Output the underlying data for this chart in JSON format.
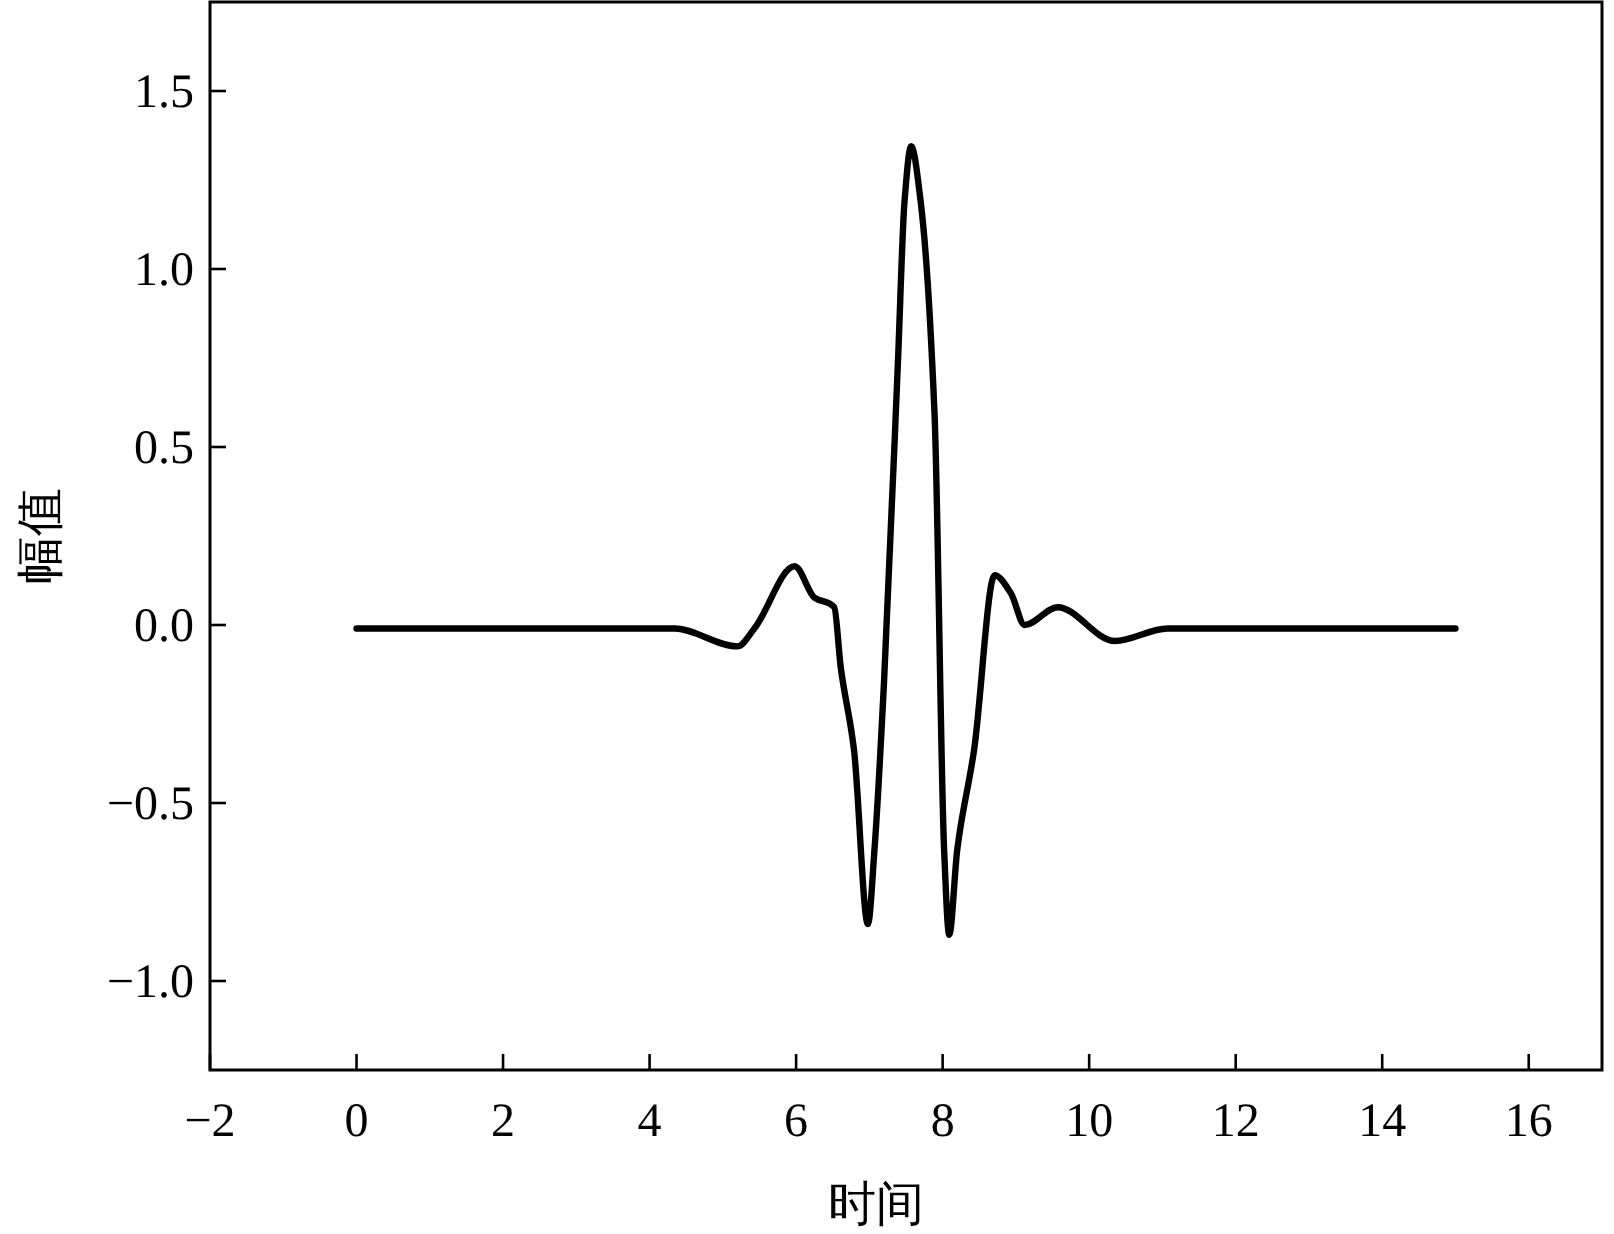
{
  "chart_data": {
    "type": "line",
    "xlabel": "时间",
    "ylabel": "幅值",
    "xlim": [
      -2,
      17
    ],
    "ylim": [
      -1.25,
      1.75
    ],
    "xticks": [
      {
        "value": -2,
        "label": "−2"
      },
      0,
      2,
      4,
      6,
      8,
      10,
      12,
      14,
      16
    ],
    "yticks": [
      {
        "value": -1,
        "label": "−1.0"
      },
      {
        "value": -0.5,
        "label": "−0.5"
      },
      {
        "value": 0,
        "label": "0.0"
      },
      {
        "value": 0.5,
        "label": "0.5"
      },
      {
        "value": 1,
        "label": "1.0"
      },
      {
        "value": 1.5,
        "label": "1.5"
      }
    ],
    "grid": false,
    "marker": "none",
    "line_style": "solid",
    "series": [
      {
        "color": "#000000",
        "x": [
          0,
          2,
          3.88,
          4.34,
          5.2,
          5.43,
          5.98,
          6.25,
          6.52,
          6.61,
          6.79,
          6.98,
          7.07,
          7.2,
          7.39,
          7.48,
          7.57,
          7.7,
          7.89,
          8.02,
          8.09,
          8.2,
          8.43,
          8.71,
          8.93,
          9.12,
          9.57,
          10.35,
          11.07,
          13,
          15
        ],
        "values": [
          -0.01,
          -0.01,
          -0.01,
          -0.01,
          -0.06,
          -0.01,
          0.165,
          0.077,
          0.05,
          -0.12,
          -0.35,
          -0.84,
          -0.63,
          -0.16,
          0.74,
          1.19,
          1.345,
          1.19,
          0.59,
          -0.63,
          -0.87,
          -0.63,
          -0.35,
          0.14,
          0.09,
          0.0,
          0.05,
          -0.045,
          -0.01,
          -0.01,
          -0.01
        ]
      }
    ]
  }
}
